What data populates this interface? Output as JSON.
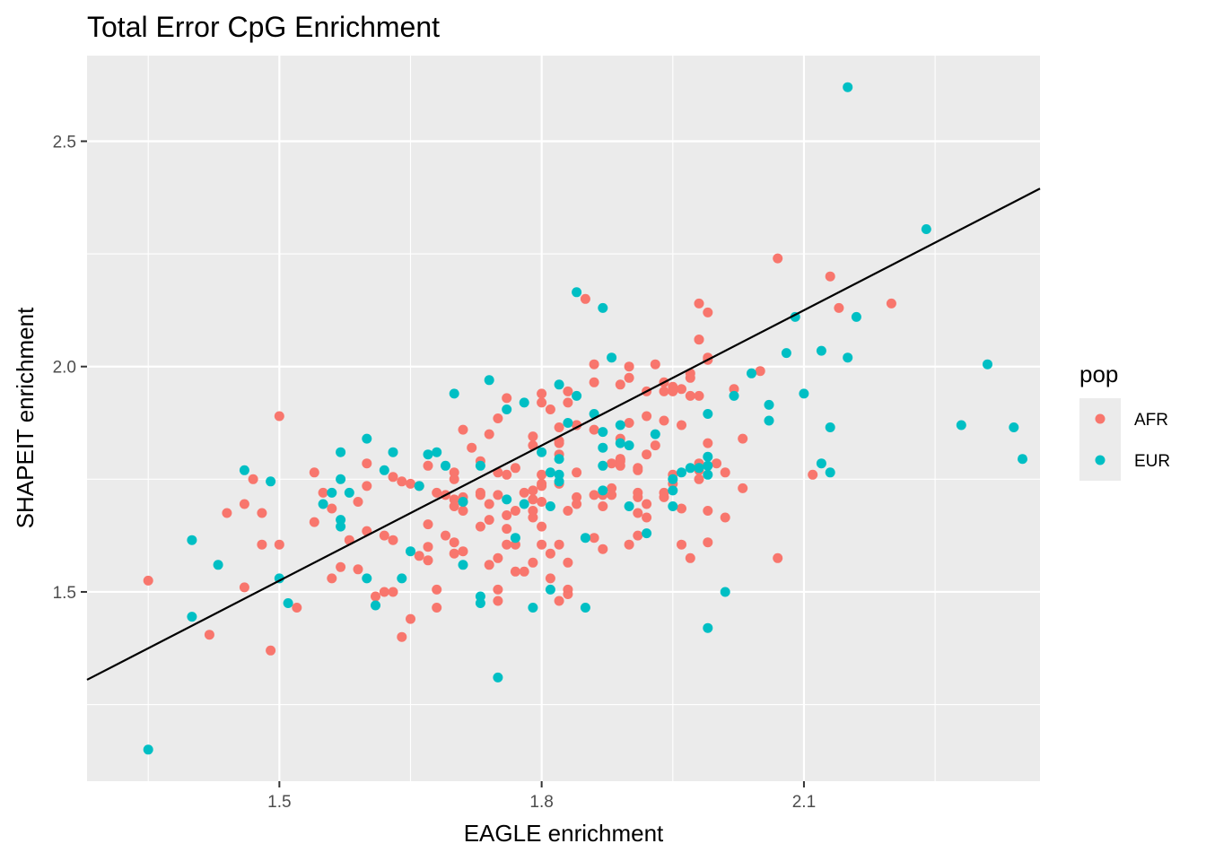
{
  "chart_data": {
    "type": "scatter",
    "title": "Total Error CpG Enrichment",
    "xlabel": "EAGLE enrichment",
    "ylabel": "SHAPEIT enrichment",
    "xlim": [
      1.28,
      2.37
    ],
    "ylim": [
      1.08,
      2.69
    ],
    "x_ticks": [
      1.5,
      1.8,
      2.1
    ],
    "x_tick_labels": [
      "1.5",
      "1.8",
      "2.1"
    ],
    "x_minor_ticks": [
      1.35,
      1.65,
      1.95,
      2.25
    ],
    "y_ticks": [
      1.5,
      2.0,
      2.5
    ],
    "y_tick_labels": [
      "1.5",
      "2.0",
      "2.5"
    ],
    "y_minor_ticks": [
      1.25,
      1.75,
      2.25
    ],
    "grid": true,
    "panel_background": "#ebebeb",
    "grid_color": "#ffffff",
    "legend": {
      "title": "pop",
      "position": "right",
      "entries": [
        {
          "label": "AFR",
          "color": "#f8766d"
        },
        {
          "label": "EUR",
          "color": "#00bfc4"
        }
      ]
    },
    "fit_line": {
      "x0": 1.28,
      "y0": 1.305,
      "x1": 2.37,
      "y1": 2.395,
      "color": "#000000"
    },
    "series": [
      {
        "name": "AFR",
        "color": "#f8766d",
        "points": [
          [
            1.35,
            1.525
          ],
          [
            1.42,
            1.405
          ],
          [
            1.44,
            1.675
          ],
          [
            1.46,
            1.695
          ],
          [
            1.46,
            1.51
          ],
          [
            1.47,
            1.75
          ],
          [
            1.48,
            1.675
          ],
          [
            1.48,
            1.605
          ],
          [
            1.49,
            1.37
          ],
          [
            1.5,
            1.605
          ],
          [
            1.5,
            1.89
          ],
          [
            1.52,
            1.465
          ],
          [
            1.54,
            1.655
          ],
          [
            1.54,
            1.765
          ],
          [
            1.55,
            1.72
          ],
          [
            1.56,
            1.53
          ],
          [
            1.56,
            1.685
          ],
          [
            1.57,
            1.555
          ],
          [
            1.58,
            1.615
          ],
          [
            1.59,
            1.7
          ],
          [
            1.59,
            1.55
          ],
          [
            1.6,
            1.635
          ],
          [
            1.6,
            1.735
          ],
          [
            1.6,
            1.785
          ],
          [
            1.61,
            1.49
          ],
          [
            1.62,
            1.625
          ],
          [
            1.62,
            1.5
          ],
          [
            1.63,
            1.5
          ],
          [
            1.63,
            1.755
          ],
          [
            1.63,
            1.615
          ],
          [
            1.64,
            1.4
          ],
          [
            1.64,
            1.745
          ],
          [
            1.65,
            1.74
          ],
          [
            1.65,
            1.44
          ],
          [
            1.66,
            1.58
          ],
          [
            1.66,
            1.735
          ],
          [
            1.67,
            1.65
          ],
          [
            1.67,
            1.6
          ],
          [
            1.67,
            1.78
          ],
          [
            1.67,
            1.57
          ],
          [
            1.68,
            1.72
          ],
          [
            1.68,
            1.505
          ],
          [
            1.68,
            1.465
          ],
          [
            1.69,
            1.625
          ],
          [
            1.69,
            1.715
          ],
          [
            1.7,
            1.69
          ],
          [
            1.7,
            1.61
          ],
          [
            1.7,
            1.765
          ],
          [
            1.7,
            1.75
          ],
          [
            1.7,
            1.705
          ],
          [
            1.7,
            1.585
          ],
          [
            1.71,
            1.71
          ],
          [
            1.71,
            1.86
          ],
          [
            1.71,
            1.68
          ],
          [
            1.71,
            1.7
          ],
          [
            1.71,
            1.59
          ],
          [
            1.72,
            1.82
          ],
          [
            1.73,
            1.72
          ],
          [
            1.73,
            1.645
          ],
          [
            1.73,
            1.715
          ],
          [
            1.73,
            1.79
          ],
          [
            1.74,
            1.85
          ],
          [
            1.74,
            1.56
          ],
          [
            1.74,
            1.66
          ],
          [
            1.74,
            1.695
          ],
          [
            1.75,
            1.575
          ],
          [
            1.75,
            1.505
          ],
          [
            1.75,
            1.48
          ],
          [
            1.75,
            1.885
          ],
          [
            1.75,
            1.715
          ],
          [
            1.75,
            1.765
          ],
          [
            1.76,
            1.605
          ],
          [
            1.76,
            1.76
          ],
          [
            1.76,
            1.93
          ],
          [
            1.76,
            1.67
          ],
          [
            1.76,
            1.64
          ],
          [
            1.77,
            1.605
          ],
          [
            1.77,
            1.68
          ],
          [
            1.77,
            1.545
          ],
          [
            1.77,
            1.775
          ],
          [
            1.78,
            1.545
          ],
          [
            1.78,
            1.72
          ],
          [
            1.79,
            1.725
          ],
          [
            1.79,
            1.565
          ],
          [
            1.79,
            1.825
          ],
          [
            1.79,
            1.845
          ],
          [
            1.79,
            1.665
          ],
          [
            1.79,
            1.68
          ],
          [
            1.79,
            1.705
          ],
          [
            1.8,
            1.735
          ],
          [
            1.8,
            1.7
          ],
          [
            1.8,
            1.74
          ],
          [
            1.8,
            1.92
          ],
          [
            1.8,
            1.94
          ],
          [
            1.8,
            1.76
          ],
          [
            1.8,
            1.645
          ],
          [
            1.8,
            1.605
          ],
          [
            1.81,
            1.53
          ],
          [
            1.81,
            1.585
          ],
          [
            1.81,
            1.905
          ],
          [
            1.82,
            1.83
          ],
          [
            1.82,
            1.865
          ],
          [
            1.82,
            1.48
          ],
          [
            1.82,
            1.805
          ],
          [
            1.82,
            1.835
          ],
          [
            1.82,
            1.605
          ],
          [
            1.82,
            1.74
          ],
          [
            1.83,
            1.565
          ],
          [
            1.83,
            1.92
          ],
          [
            1.83,
            1.945
          ],
          [
            1.83,
            1.68
          ],
          [
            1.83,
            1.495
          ],
          [
            1.83,
            1.505
          ],
          [
            1.84,
            1.71
          ],
          [
            1.84,
            1.695
          ],
          [
            1.84,
            1.765
          ],
          [
            1.84,
            1.87
          ],
          [
            1.84,
            1.87
          ],
          [
            1.85,
            2.15
          ],
          [
            1.86,
            1.965
          ],
          [
            1.86,
            2.005
          ],
          [
            1.86,
            1.86
          ],
          [
            1.86,
            1.715
          ],
          [
            1.86,
            1.62
          ],
          [
            1.87,
            1.715
          ],
          [
            1.87,
            1.69
          ],
          [
            1.87,
            1.595
          ],
          [
            1.88,
            1.715
          ],
          [
            1.88,
            1.73
          ],
          [
            1.88,
            1.785
          ],
          [
            1.89,
            1.79
          ],
          [
            1.89,
            1.795
          ],
          [
            1.89,
            1.96
          ],
          [
            1.89,
            1.795
          ],
          [
            1.89,
            1.78
          ],
          [
            1.89,
            1.84
          ],
          [
            1.9,
            1.875
          ],
          [
            1.9,
            1.605
          ],
          [
            1.9,
            2.0
          ],
          [
            1.9,
            1.975
          ],
          [
            1.91,
            1.77
          ],
          [
            1.91,
            1.72
          ],
          [
            1.91,
            1.775
          ],
          [
            1.91,
            1.71
          ],
          [
            1.91,
            1.675
          ],
          [
            1.91,
            1.625
          ],
          [
            1.92,
            1.945
          ],
          [
            1.92,
            1.805
          ],
          [
            1.92,
            1.695
          ],
          [
            1.92,
            1.89
          ],
          [
            1.92,
            1.665
          ],
          [
            1.93,
            1.825
          ],
          [
            1.93,
            2.005
          ],
          [
            1.94,
            1.965
          ],
          [
            1.94,
            1.945
          ],
          [
            1.94,
            1.71
          ],
          [
            1.94,
            1.88
          ],
          [
            1.94,
            1.72
          ],
          [
            1.95,
            1.74
          ],
          [
            1.95,
            1.76
          ],
          [
            1.95,
            1.955
          ],
          [
            1.95,
            1.945
          ],
          [
            1.96,
            1.95
          ],
          [
            1.96,
            1.87
          ],
          [
            1.96,
            1.605
          ],
          [
            1.96,
            1.685
          ],
          [
            1.97,
            1.935
          ],
          [
            1.97,
            1.985
          ],
          [
            1.97,
            1.975
          ],
          [
            1.98,
            2.06
          ],
          [
            1.98,
            1.77
          ],
          [
            1.98,
            1.75
          ],
          [
            1.98,
            2.14
          ],
          [
            1.98,
            1.785
          ],
          [
            1.98,
            1.935
          ],
          [
            1.99,
            1.61
          ],
          [
            1.99,
            2.015
          ],
          [
            1.99,
            2.12
          ],
          [
            1.99,
            1.68
          ],
          [
            1.99,
            1.83
          ],
          [
            1.99,
            2.02
          ],
          [
            2.0,
            1.785
          ],
          [
            2.01,
            1.765
          ],
          [
            2.01,
            1.665
          ],
          [
            2.02,
            1.95
          ],
          [
            2.03,
            1.84
          ],
          [
            2.03,
            1.73
          ],
          [
            2.05,
            1.99
          ],
          [
            2.07,
            2.24
          ],
          [
            2.11,
            1.76
          ],
          [
            2.13,
            2.2
          ],
          [
            2.14,
            2.13
          ],
          [
            2.2,
            2.14
          ],
          [
            2.07,
            1.575
          ],
          [
            1.97,
            1.575
          ],
          [
            1.98,
            2.06
          ]
        ]
      },
      {
        "name": "EUR",
        "color": "#00bfc4",
        "points": [
          [
            1.35,
            1.15
          ],
          [
            1.4,
            1.615
          ],
          [
            1.4,
            1.445
          ],
          [
            1.43,
            1.56
          ],
          [
            1.46,
            1.77
          ],
          [
            1.49,
            1.745
          ],
          [
            1.5,
            1.53
          ],
          [
            1.51,
            1.475
          ],
          [
            1.55,
            1.695
          ],
          [
            1.56,
            1.72
          ],
          [
            1.57,
            1.81
          ],
          [
            1.57,
            1.75
          ],
          [
            1.57,
            1.66
          ],
          [
            1.57,
            1.645
          ],
          [
            1.58,
            1.72
          ],
          [
            1.6,
            1.53
          ],
          [
            1.6,
            1.84
          ],
          [
            1.61,
            1.47
          ],
          [
            1.62,
            1.77
          ],
          [
            1.63,
            1.81
          ],
          [
            1.64,
            1.53
          ],
          [
            1.65,
            1.59
          ],
          [
            1.66,
            1.735
          ],
          [
            1.67,
            1.805
          ],
          [
            1.68,
            1.81
          ],
          [
            1.69,
            1.78
          ],
          [
            1.7,
            1.94
          ],
          [
            1.71,
            1.56
          ],
          [
            1.71,
            1.7
          ],
          [
            1.73,
            1.475
          ],
          [
            1.73,
            1.78
          ],
          [
            1.73,
            1.49
          ],
          [
            1.74,
            1.97
          ],
          [
            1.75,
            1.31
          ],
          [
            1.76,
            1.905
          ],
          [
            1.76,
            1.705
          ],
          [
            1.77,
            1.62
          ],
          [
            1.78,
            1.92
          ],
          [
            1.78,
            1.695
          ],
          [
            1.79,
            1.465
          ],
          [
            1.8,
            1.81
          ],
          [
            1.81,
            1.765
          ],
          [
            1.81,
            1.69
          ],
          [
            1.81,
            1.505
          ],
          [
            1.82,
            1.96
          ],
          [
            1.82,
            1.76
          ],
          [
            1.82,
            1.745
          ],
          [
            1.82,
            1.795
          ],
          [
            1.83,
            1.875
          ],
          [
            1.84,
            2.165
          ],
          [
            1.84,
            1.935
          ],
          [
            1.85,
            1.62
          ],
          [
            1.85,
            1.465
          ],
          [
            1.86,
            1.895
          ],
          [
            1.87,
            2.13
          ],
          [
            1.87,
            1.725
          ],
          [
            1.87,
            1.78
          ],
          [
            1.87,
            1.82
          ],
          [
            1.87,
            1.855
          ],
          [
            1.88,
            2.02
          ],
          [
            1.89,
            1.83
          ],
          [
            1.89,
            1.87
          ],
          [
            1.9,
            1.825
          ],
          [
            1.9,
            1.69
          ],
          [
            1.92,
            1.63
          ],
          [
            1.93,
            1.85
          ],
          [
            1.95,
            1.75
          ],
          [
            1.95,
            1.725
          ],
          [
            1.95,
            1.69
          ],
          [
            1.96,
            1.765
          ],
          [
            1.97,
            1.775
          ],
          [
            1.98,
            1.775
          ],
          [
            1.99,
            1.8
          ],
          [
            1.99,
            1.78
          ],
          [
            1.99,
            1.895
          ],
          [
            1.99,
            1.76
          ],
          [
            1.99,
            1.42
          ],
          [
            2.01,
            1.5
          ],
          [
            2.02,
            1.935
          ],
          [
            2.04,
            1.985
          ],
          [
            2.06,
            1.88
          ],
          [
            2.06,
            1.915
          ],
          [
            2.08,
            2.03
          ],
          [
            2.09,
            2.11
          ],
          [
            2.1,
            1.94
          ],
          [
            2.12,
            1.785
          ],
          [
            2.12,
            2.035
          ],
          [
            2.13,
            1.865
          ],
          [
            2.13,
            1.765
          ],
          [
            2.15,
            2.62
          ],
          [
            2.15,
            2.02
          ],
          [
            2.16,
            2.11
          ],
          [
            2.24,
            2.305
          ],
          [
            2.28,
            1.87
          ],
          [
            2.31,
            2.005
          ],
          [
            2.34,
            1.865
          ],
          [
            2.35,
            1.795
          ]
        ]
      }
    ]
  }
}
